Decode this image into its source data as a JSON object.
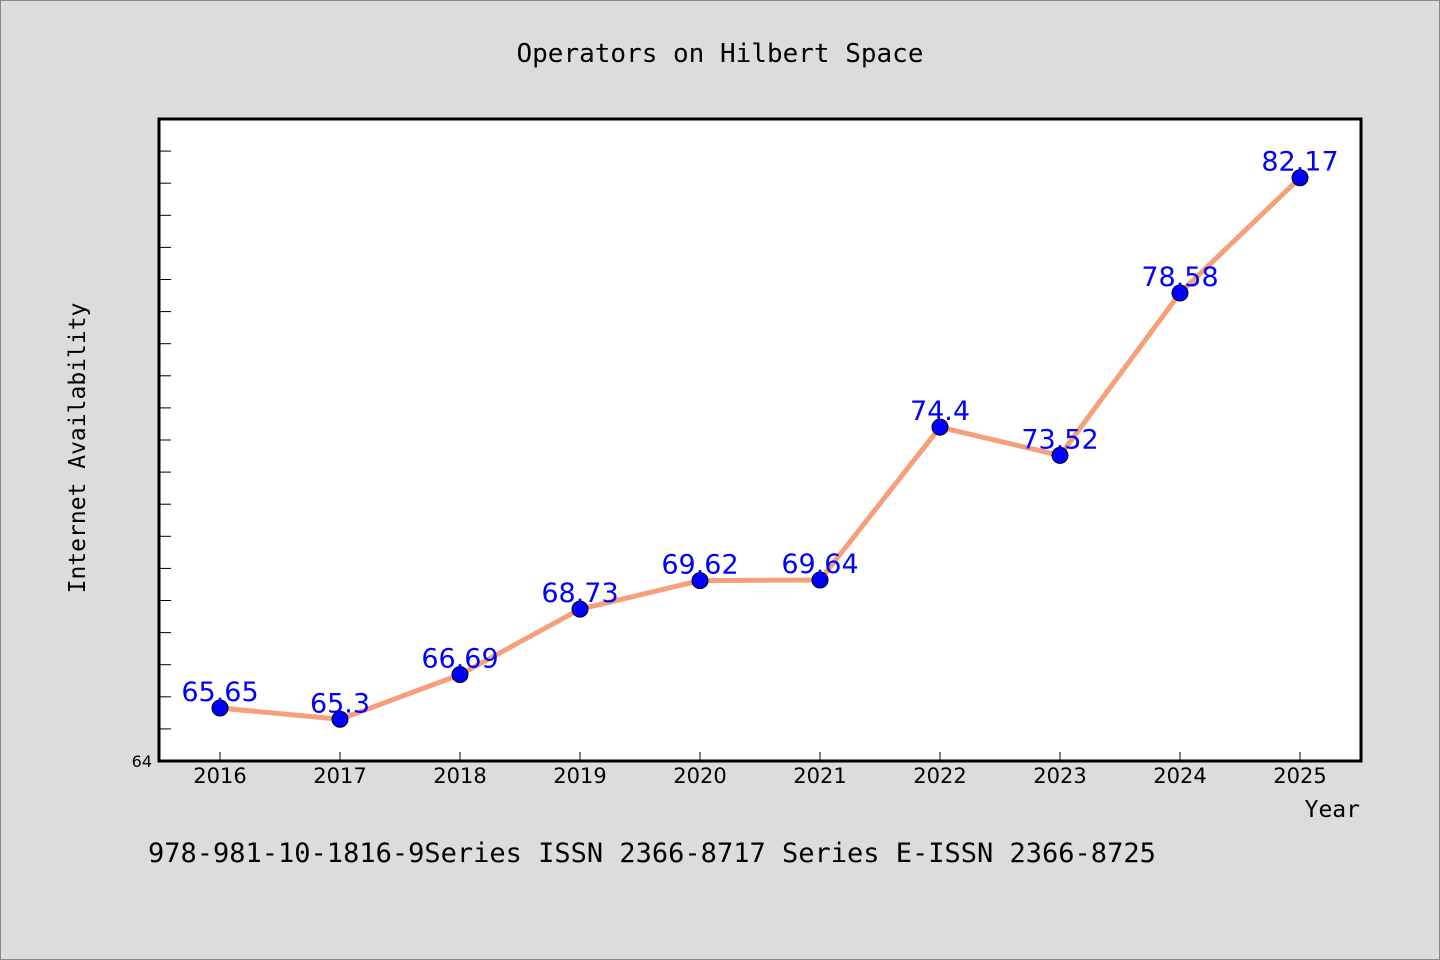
{
  "chart_data": {
    "type": "line",
    "title": "Operators on Hilbert Space",
    "xlabel": "Year",
    "ylabel": "Internet Availability",
    "ylim": [
      64,
      84
    ],
    "y_tick_labels": [
      "64"
    ],
    "categories": [
      "2016",
      "2017",
      "2018",
      "2019",
      "2020",
      "2021",
      "2022",
      "2023",
      "2024",
      "2025"
    ],
    "series": [
      {
        "values": [
          65.65,
          65.3,
          66.69,
          68.73,
          69.62,
          69.64,
          74.4,
          73.52,
          78.58,
          82.17
        ],
        "labels": [
          "65.65",
          "65.3",
          "66.69",
          "68.73",
          "69.62",
          "69.64",
          "74.4",
          "73.52",
          "78.58",
          "82.17"
        ]
      }
    ],
    "grid": false,
    "colors": {
      "line": "#f5a07a",
      "marker": "#0000ff",
      "label": "#0000ff",
      "background": "#dcdcdc",
      "plot_background": "#ffffff"
    }
  },
  "footer": {
    "text": "978-981-10-1816-9Series ISSN 2366-8717 Series E-ISSN 2366-8725"
  }
}
